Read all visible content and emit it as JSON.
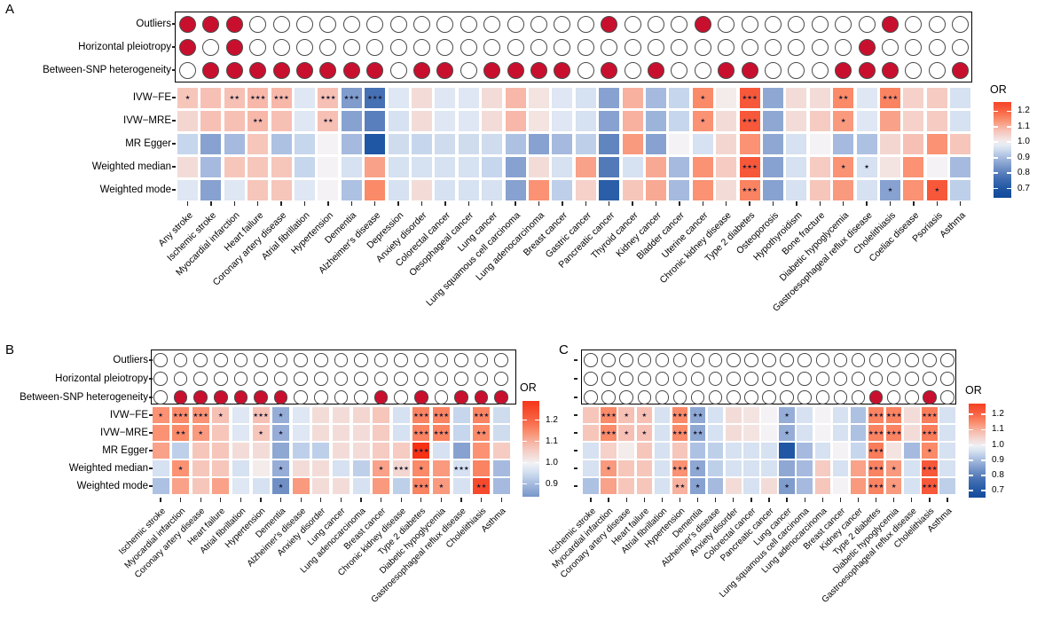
{
  "figure_colors": {
    "filled_circle": "#c8102e",
    "empty_circle": "#ffffff",
    "high_or_red": "#f63114",
    "low_or_blue": "#134a99",
    "star_color": "#1c1c34"
  },
  "chart_data": [
    {
      "type": "heatmap",
      "panel": "A",
      "qc_rows": [
        {
          "label": "Outliers",
          "filled_columns": [
            1,
            2,
            3,
            19,
            23,
            31
          ]
        },
        {
          "label": "Horizontal pleiotropy",
          "filled_columns": [
            1,
            3,
            30
          ]
        },
        {
          "label": "Between-SNP heterogeneity",
          "filled_columns": [
            2,
            3,
            4,
            5,
            6,
            7,
            8,
            9,
            11,
            12,
            14,
            15,
            16,
            17,
            19,
            21,
            24,
            25,
            29,
            30,
            31,
            34
          ]
        }
      ],
      "methods": [
        "IVW−FE",
        "IVW−MRE",
        "MR Egger",
        "Weighted median",
        "Weighted mode"
      ],
      "categories": [
        "Any stroke",
        "Ischemic stroke",
        "Myocardial infarction",
        "Heart failure",
        "Coronary artery disease",
        "Atrial fibrillation",
        "Hypertension",
        "Dementia",
        "Alzheimer's disease",
        "Depression",
        "Anxiety disorder",
        "Colorectal cancer",
        "Oesophageal cancer",
        "Lung cancer",
        "Lung squamous cell carcinoma",
        "Lung adenocarcinoma",
        "Breast cancer",
        "Gastric cancer",
        "Pancreatic cancer",
        "Thyroid cancer",
        "Kidney cancer",
        "Bladder cancer",
        "Uterine cancer",
        "Chronic kidney disease",
        "Type 2 diabetes",
        "Osteoporosis",
        "Hypothyroidism",
        "Bone fracture",
        "Diabetic hypoglycemia",
        "Gastroesophageal reflux disease",
        "Cholelithiasis",
        "Coeliac disease",
        "Psoriasis",
        "Asthma"
      ],
      "or_values": [
        [
          1.07,
          1.08,
          1.08,
          1.09,
          1.09,
          0.97,
          1.08,
          0.85,
          0.77,
          0.97,
          1.03,
          0.97,
          0.97,
          1.03,
          1.09,
          1.02,
          0.97,
          0.96,
          0.86,
          1.1,
          0.9,
          0.94,
          1.15,
          1.01,
          1.22,
          0.87,
          1.03,
          1.03,
          1.15,
          0.97,
          1.16,
          1.05,
          1.06,
          0.96
        ],
        [
          1.04,
          1.08,
          1.08,
          1.09,
          1.08,
          0.97,
          1.08,
          0.86,
          0.8,
          0.96,
          1.03,
          0.97,
          0.97,
          1.03,
          1.09,
          1.02,
          0.97,
          0.96,
          0.86,
          1.1,
          0.89,
          0.94,
          1.14,
          1.03,
          1.22,
          0.87,
          1.03,
          1.06,
          1.13,
          0.97,
          1.12,
          1.05,
          1.06,
          0.96
        ],
        [
          0.94,
          0.86,
          0.9,
          1.07,
          0.91,
          0.94,
          1.0,
          0.9,
          0.7,
          0.95,
          0.94,
          0.95,
          0.95,
          0.95,
          0.91,
          0.86,
          0.9,
          0.93,
          0.81,
          1.13,
          0.86,
          1.0,
          0.96,
          1.04,
          1.14,
          0.87,
          0.96,
          1.0,
          0.9,
          0.91,
          1.04,
          1.08,
          1.14,
          1.07
        ],
        [
          1.03,
          0.9,
          1.07,
          1.07,
          1.07,
          0.94,
          1.0,
          0.96,
          1.12,
          0.96,
          0.96,
          0.96,
          0.96,
          0.94,
          0.86,
          1.03,
          0.96,
          1.12,
          0.79,
          0.96,
          1.11,
          0.9,
          1.14,
          1.06,
          1.22,
          0.86,
          0.96,
          1.06,
          1.14,
          0.96,
          1.02,
          1.14,
          1.0,
          0.9
        ],
        [
          0.97,
          0.86,
          0.97,
          1.07,
          1.07,
          0.97,
          1.0,
          0.91,
          1.15,
          0.96,
          1.03,
          0.96,
          0.96,
          0.96,
          0.86,
          1.14,
          0.93,
          1.05,
          0.72,
          1.07,
          1.11,
          0.9,
          1.14,
          1.03,
          1.16,
          0.86,
          0.96,
          1.07,
          1.13,
          0.96,
          0.86,
          1.14,
          1.22,
          0.93
        ]
      ],
      "significance": [
        [
          "*",
          "",
          "**",
          "***",
          "***",
          "",
          "***",
          "***",
          "***",
          "",
          "",
          "",
          "",
          "",
          "",
          "",
          "",
          "",
          "",
          "",
          "",
          "",
          "*",
          "",
          "***",
          "",
          "",
          "",
          "**",
          "",
          "***",
          "",
          "",
          ""
        ],
        [
          "",
          "",
          "",
          "**",
          "",
          "",
          "**",
          "",
          "",
          "",
          "",
          "",
          "",
          "",
          "",
          "",
          "",
          "",
          "",
          "",
          "",
          "",
          "*",
          "",
          "***",
          "",
          "",
          "",
          "*",
          "",
          "",
          "",
          "",
          ""
        ],
        [
          "",
          "",
          "",
          "",
          "",
          "",
          "",
          "",
          "",
          "",
          "",
          "",
          "",
          "",
          "",
          "",
          "",
          "",
          "",
          "",
          "",
          "",
          "",
          "",
          "",
          "",
          "",
          "",
          "",
          "",
          "",
          "",
          "",
          ""
        ],
        [
          "",
          "",
          "",
          "",
          "",
          "",
          "",
          "",
          "",
          "",
          "",
          "",
          "",
          "",
          "",
          "",
          "",
          "",
          "",
          "",
          "",
          "",
          "",
          "",
          "***",
          "",
          "",
          "",
          "*",
          "*",
          "",
          "",
          "",
          ""
        ],
        [
          "",
          "",
          "",
          "",
          "",
          "",
          "",
          "",
          "",
          "",
          "",
          "",
          "",
          "",
          "",
          "",
          "",
          "",
          "",
          "",
          "",
          "",
          "",
          "",
          "***",
          "",
          "",
          "",
          "",
          "",
          "*",
          "",
          "*",
          ""
        ]
      ],
      "legend": {
        "title": "OR",
        "ticks": [
          "1.2",
          "1.1",
          "1.0",
          "0.9",
          "0.8",
          "0.7"
        ]
      }
    },
    {
      "type": "heatmap",
      "panel": "B",
      "qc_rows": [
        {
          "label": "Outliers",
          "filled_columns": []
        },
        {
          "label": "Horizontal pleiotropy",
          "filled_columns": []
        },
        {
          "label": "Between-SNP heterogeneity",
          "filled_columns": [
            2,
            3,
            4,
            5,
            6,
            7,
            12,
            14,
            16,
            17,
            18
          ]
        }
      ],
      "methods": [
        "IVW−FE",
        "IVW−MRE",
        "MR Egger",
        "Weighted median",
        "Weighted mode"
      ],
      "categories": [
        "Ischemic stroke",
        "Myocardial infarction",
        "Coronary artery disease",
        "Heart failure",
        "Atrial fibrillation",
        "Hypertension",
        "Dementia",
        "Alzheimer's disease",
        "Anxiety disorder",
        "Lung cancer",
        "Lung adenocarcinoma",
        "Breast cancer",
        "Chronic kidney disease",
        "Type 2 diabetes",
        "Diabetic hypoglycemia",
        "Gastroesophageal reflux disease",
        "Cholelithiasis",
        "Asthma"
      ],
      "or_values": [
        [
          1.14,
          1.15,
          1.14,
          1.08,
          0.97,
          1.08,
          0.88,
          0.97,
          1.03,
          1.03,
          1.04,
          1.07,
          0.96,
          1.16,
          1.16,
          0.94,
          1.16,
          0.95
        ],
        [
          1.14,
          1.15,
          1.13,
          1.07,
          0.97,
          1.07,
          0.88,
          0.97,
          1.03,
          1.03,
          1.03,
          1.06,
          0.96,
          1.16,
          1.16,
          0.94,
          1.15,
          0.95
        ],
        [
          1.12,
          0.93,
          1.07,
          1.07,
          1.03,
          1.03,
          0.87,
          0.93,
          0.93,
          1.03,
          1.03,
          1.06,
          1.06,
          1.3,
          0.96,
          0.86,
          1.14,
          1.06
        ],
        [
          0.96,
          1.14,
          1.07,
          1.07,
          0.96,
          1.01,
          0.88,
          1.03,
          1.03,
          0.96,
          0.93,
          1.12,
          1.04,
          1.15,
          1.13,
          0.96,
          1.16,
          0.9
        ],
        [
          0.91,
          1.12,
          1.07,
          1.12,
          0.97,
          0.96,
          0.83,
          1.13,
          1.03,
          1.03,
          0.96,
          1.13,
          0.93,
          1.16,
          1.13,
          0.96,
          1.25,
          0.9
        ]
      ],
      "significance": [
        [
          "*",
          "***",
          "***",
          "*",
          "",
          "***",
          "*",
          "",
          "",
          "",
          "",
          "",
          "",
          "***",
          "***",
          "",
          "***",
          ""
        ],
        [
          "",
          "**",
          "*",
          "",
          "",
          "*",
          "*",
          "",
          "",
          "",
          "",
          "",
          "",
          "***",
          "***",
          "",
          "**",
          ""
        ],
        [
          "",
          "",
          "",
          "",
          "",
          "",
          "",
          "",
          "",
          "",
          "",
          "",
          "",
          "***",
          "",
          "",
          "",
          ""
        ],
        [
          "",
          "*",
          "",
          "",
          "",
          "",
          "*",
          "",
          "",
          "",
          "",
          "*",
          "***",
          "*",
          "",
          "***",
          "",
          ""
        ],
        [
          "",
          "",
          "",
          "",
          "",
          "",
          "*",
          "",
          "",
          "",
          "",
          "",
          "",
          "***",
          "*",
          "",
          "**",
          ""
        ]
      ],
      "significance_fix": true,
      "legend": {
        "title": "OR",
        "ticks": [
          "1.2",
          "1.1",
          "1.0",
          "0.9"
        ]
      }
    },
    {
      "type": "heatmap",
      "panel": "C",
      "qc_rows": [
        {
          "label": "Outliers",
          "filled_columns": []
        },
        {
          "label": "Horizontal pleiotropy",
          "filled_columns": []
        },
        {
          "label": "Between-SNP heterogeneity",
          "filled_columns": [
            17,
            20
          ]
        }
      ],
      "methods": [
        "IVW−FE",
        "IVW−MRE",
        "MR Egger",
        "Weighted median",
        "Weighted mode"
      ],
      "categories": [
        "Ischemic stroke",
        "Myocardial infarction",
        "Coronary artery disease",
        "Heart failure",
        "Atrial fibrillation",
        "Hypertension",
        "Dementia",
        "Alzheimer's disease",
        "Anxiety disorder",
        "Colorectal cancer",
        "Pancreatic cancer",
        "Lung cancer",
        "Lung squamous cell carcinoma",
        "Lung adenocarcinoma",
        "Breast cancer",
        "Kidney cancer",
        "Type 2 diabetes",
        "Diabetic hypoglycemia",
        "Gastroesophageal reflux disease",
        "Cholelithiasis",
        "Asthma"
      ],
      "or_values": [
        [
          1.07,
          1.15,
          1.08,
          1.08,
          0.96,
          1.15,
          0.87,
          0.96,
          1.03,
          1.02,
          1.0,
          0.88,
          0.96,
          1.0,
          0.96,
          0.91,
          1.16,
          1.16,
          1.03,
          1.17,
          0.96
        ],
        [
          1.07,
          1.15,
          1.08,
          1.08,
          0.96,
          1.15,
          0.87,
          0.96,
          1.03,
          1.02,
          1.0,
          0.88,
          0.96,
          1.0,
          0.96,
          0.91,
          1.16,
          1.16,
          1.03,
          1.17,
          0.96
        ],
        [
          0.96,
          1.05,
          1.01,
          1.07,
          0.96,
          1.07,
          0.91,
          0.93,
          0.96,
          0.96,
          0.96,
          0.7,
          0.9,
          0.96,
          1.0,
          0.94,
          1.17,
          1.02,
          0.9,
          1.15,
          0.96
        ],
        [
          0.96,
          1.13,
          1.07,
          1.07,
          0.96,
          1.14,
          0.87,
          0.93,
          0.96,
          0.96,
          0.96,
          0.87,
          0.9,
          1.06,
          0.96,
          1.12,
          1.16,
          1.13,
          0.96,
          1.22,
          0.96
        ],
        [
          0.91,
          1.12,
          1.07,
          1.07,
          0.96,
          1.1,
          0.86,
          0.9,
          1.03,
          0.96,
          1.03,
          0.85,
          0.9,
          1.07,
          1.0,
          1.13,
          1.16,
          1.13,
          0.96,
          1.22,
          0.93
        ]
      ],
      "significance": [
        [
          "",
          "***",
          "*",
          "*",
          "",
          "***",
          "**",
          "",
          "",
          "",
          "",
          "*",
          "",
          "",
          "",
          "",
          "***",
          "***",
          "",
          "***",
          ""
        ],
        [
          "",
          "***",
          "*",
          "*",
          "",
          "***",
          "**",
          "",
          "",
          "",
          "",
          "*",
          "",
          "",
          "",
          "",
          "***",
          "***",
          "",
          "***",
          ""
        ],
        [
          "",
          "",
          "",
          "",
          "",
          "",
          "",
          "",
          "",
          "",
          "",
          "",
          "",
          "",
          "",
          "",
          "***",
          "",
          "",
          "*",
          ""
        ],
        [
          "",
          "*",
          "",
          "",
          "",
          "***",
          "*",
          "",
          "",
          "",
          "",
          "",
          "",
          "",
          "",
          "",
          "***",
          "*",
          "",
          "***",
          ""
        ],
        [
          "",
          "",
          "",
          "",
          "",
          "**",
          "*",
          "",
          "",
          "",
          "",
          "*",
          "",
          "",
          "",
          "",
          "***",
          "*",
          "",
          "***",
          ""
        ]
      ],
      "legend": {
        "title": "OR",
        "ticks": [
          "1.2",
          "1.1",
          "1.0",
          "0.9",
          "0.8",
          "0.7"
        ]
      }
    }
  ]
}
